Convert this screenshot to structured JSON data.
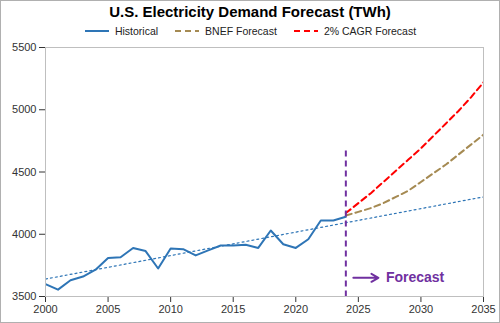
{
  "chart_data": {
    "type": "line",
    "title": "U.S. Electricity Demand Forecast (TWh)",
    "legend": "top",
    "xlim": [
      2000,
      2035
    ],
    "xticks": [
      2000,
      2005,
      2010,
      2015,
      2020,
      2025,
      2030,
      2035
    ],
    "ylim": [
      3500,
      5500
    ],
    "yticks": [
      3500,
      4000,
      4500,
      5000,
      5500
    ],
    "series": [
      {
        "name": "Historical",
        "color": "#2e75b6",
        "line_style": "solid",
        "x": [
          2000,
          2001,
          2002,
          2003,
          2004,
          2005,
          2006,
          2007,
          2008,
          2009,
          2010,
          2011,
          2012,
          2013,
          2014,
          2015,
          2016,
          2017,
          2018,
          2019,
          2020,
          2021,
          2022,
          2023,
          2024
        ],
        "values": [
          3600,
          3555,
          3630,
          3660,
          3715,
          3810,
          3815,
          3890,
          3865,
          3725,
          3885,
          3880,
          3830,
          3870,
          3910,
          3910,
          3915,
          3890,
          4030,
          3920,
          3890,
          3960,
          4110,
          4110,
          4140
        ]
      },
      {
        "name": "BNEF Forecast",
        "color": "#a58a52",
        "line_style": "dashed",
        "x": [
          2024,
          2025,
          2026,
          2027,
          2028,
          2029,
          2030,
          2031,
          2032,
          2033,
          2034,
          2035
        ],
        "values": [
          4150,
          4180,
          4210,
          4250,
          4300,
          4350,
          4420,
          4490,
          4560,
          4640,
          4720,
          4800
        ]
      },
      {
        "name": "2% CAGR Forecast",
        "color": "#ff0000",
        "line_style": "dashed",
        "x": [
          2024,
          2025,
          2026,
          2027,
          2028,
          2029,
          2030,
          2031,
          2032,
          2033,
          2034,
          2035
        ],
        "values": [
          4170,
          4250,
          4330,
          4420,
          4510,
          4600,
          4690,
          4790,
          4890,
          4990,
          5100,
          5220
        ]
      },
      {
        "color": "#2e75b6",
        "line_style": "dotted",
        "x": [
          2000,
          2035
        ],
        "values": [
          3640,
          4300
        ]
      }
    ],
    "vline": {
      "x": 2024,
      "y1": 3500,
      "y2": 4700,
      "color": "#7030a0",
      "line_style": "dashed"
    },
    "annotations": [
      {
        "text": "Forecast",
        "x": 2024,
        "y": 3650,
        "color": "#7030a0"
      }
    ]
  }
}
